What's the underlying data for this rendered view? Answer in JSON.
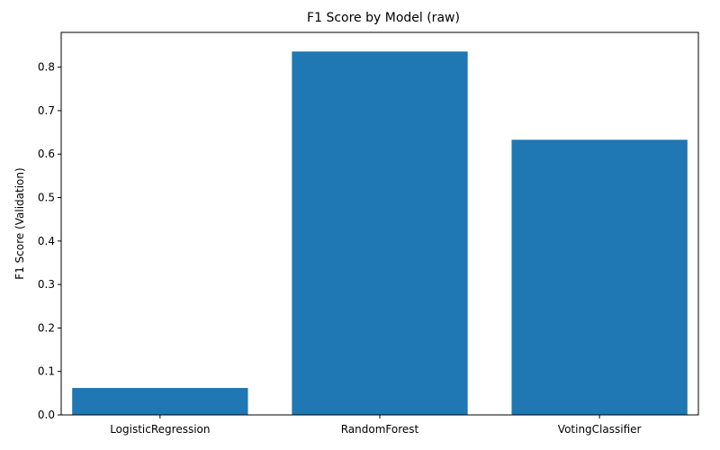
{
  "chart_data": {
    "type": "bar",
    "title": "F1 Score by Model (raw)",
    "xlabel": "",
    "ylabel": "F1 Score (Validation)",
    "categories": [
      "LogisticRegression",
      "RandomForest",
      "VotingClassifier"
    ],
    "values": [
      0.062,
      0.836,
      0.633
    ],
    "ylim": [
      0,
      0.88
    ],
    "yticks": [
      0.0,
      0.1,
      0.2,
      0.3,
      0.4,
      0.5,
      0.6,
      0.7,
      0.8
    ],
    "ytick_labels": [
      "0.0",
      "0.1",
      "0.2",
      "0.3",
      "0.4",
      "0.5",
      "0.6",
      "0.7",
      "0.8"
    ],
    "bar_color": "#1f77b4",
    "grid": false,
    "legend": "none"
  }
}
